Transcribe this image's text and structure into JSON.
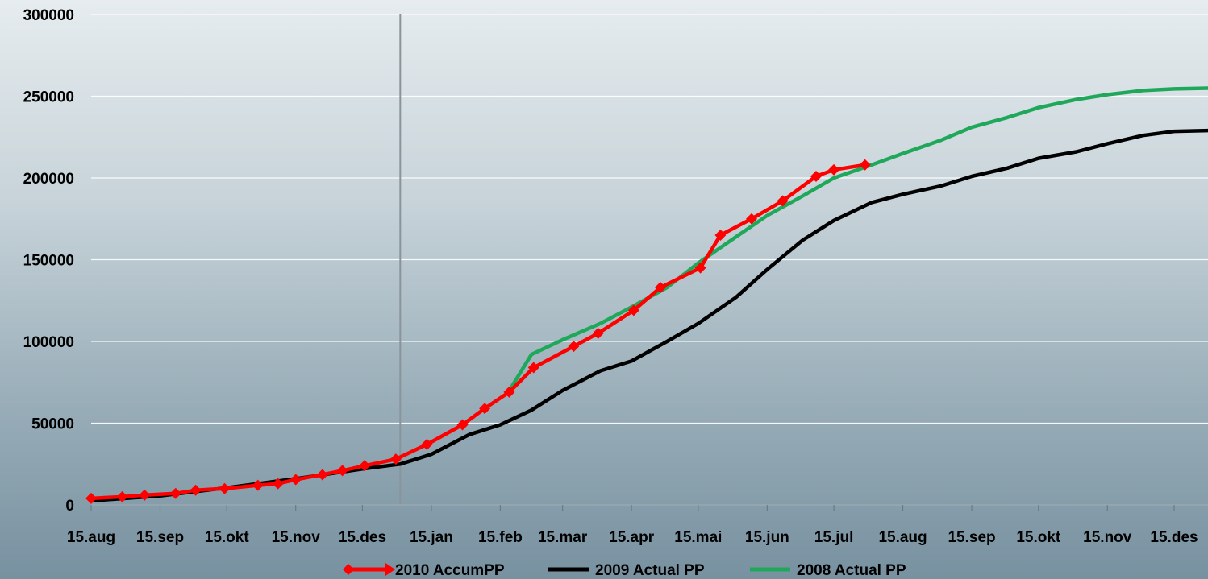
{
  "chart_data": {
    "type": "line",
    "title": "",
    "xlabel": "",
    "ylabel": "",
    "ylim": [
      0,
      300000
    ],
    "yticks": [
      0,
      50000,
      100000,
      150000,
      200000,
      250000,
      300000
    ],
    "ytick_labels": [
      "0",
      "50000",
      "100000",
      "150000",
      "200000",
      "250000",
      "300000"
    ],
    "x_axis": "date",
    "xlim": [
      "2009-08-15",
      "2010-12-15"
    ],
    "xtick_labels": [
      "15.aug",
      "15.sep",
      "15.okt",
      "15.nov",
      "15.des",
      "15.jan",
      "15.feb",
      "15.mar",
      "15.apr",
      "15.mai",
      "15.jun",
      "15.jul",
      "15.aug",
      "15.sep",
      "15.okt",
      "15.nov",
      "15.des"
    ],
    "xtick_dates": [
      "2009-08-15",
      "2009-09-15",
      "2009-10-15",
      "2009-11-15",
      "2009-12-15",
      "2010-01-15",
      "2010-02-15",
      "2010-03-15",
      "2010-04-15",
      "2010-05-15",
      "2010-06-15",
      "2010-07-15",
      "2010-08-15",
      "2010-09-15",
      "2010-10-15",
      "2010-11-15",
      "2010-12-15"
    ],
    "reference_line_date": "2010-01-01",
    "grid": "horizontal",
    "legend_position": "bottom",
    "series": [
      {
        "name": "2010 AccumPP",
        "color": "#ff0000",
        "marker": "diamond",
        "points": [
          [
            "2009-08-15",
            4000
          ],
          [
            "2009-08-29",
            5000
          ],
          [
            "2009-09-08",
            6000
          ],
          [
            "2009-09-22",
            7000
          ],
          [
            "2009-10-01",
            9000
          ],
          [
            "2009-10-14",
            10000
          ],
          [
            "2009-10-29",
            12000
          ],
          [
            "2009-11-07",
            13000
          ],
          [
            "2009-11-15",
            15500
          ],
          [
            "2009-11-27",
            18500
          ],
          [
            "2009-12-06",
            21000
          ],
          [
            "2009-12-16",
            24000
          ],
          [
            "2009-12-30",
            28000
          ],
          [
            "2010-01-13",
            37000
          ],
          [
            "2010-01-29",
            49000
          ],
          [
            "2010-02-08",
            59000
          ],
          [
            "2010-02-19",
            69000
          ],
          [
            "2010-03-02",
            84000
          ],
          [
            "2010-03-20",
            97000
          ],
          [
            "2010-03-31",
            105000
          ],
          [
            "2010-04-16",
            119000
          ],
          [
            "2010-04-28",
            133000
          ],
          [
            "2010-05-16",
            145000
          ],
          [
            "2010-05-25",
            165000
          ],
          [
            "2010-06-08",
            175000
          ],
          [
            "2010-06-22",
            186000
          ],
          [
            "2010-07-07",
            201000
          ],
          [
            "2010-07-15",
            205000
          ],
          [
            "2010-07-29",
            208000
          ]
        ]
      },
      {
        "name": "2009 Actual PP",
        "color": "#000000",
        "marker": "none",
        "points": [
          [
            "2009-08-15",
            2500
          ],
          [
            "2009-09-15",
            5500
          ],
          [
            "2009-10-15",
            10500
          ],
          [
            "2009-11-15",
            16000
          ],
          [
            "2009-12-15",
            22000
          ],
          [
            "2010-01-01",
            25000
          ],
          [
            "2010-01-15",
            31000
          ],
          [
            "2010-02-01",
            43000
          ],
          [
            "2010-02-15",
            49000
          ],
          [
            "2010-03-01",
            58000
          ],
          [
            "2010-03-15",
            70000
          ],
          [
            "2010-04-01",
            82000
          ],
          [
            "2010-04-15",
            88000
          ],
          [
            "2010-05-01",
            100000
          ],
          [
            "2010-05-15",
            111000
          ],
          [
            "2010-06-01",
            127000
          ],
          [
            "2010-06-15",
            144000
          ],
          [
            "2010-07-01",
            162000
          ],
          [
            "2010-07-15",
            174000
          ],
          [
            "2010-08-01",
            185000
          ],
          [
            "2010-08-15",
            190000
          ],
          [
            "2010-09-01",
            195000
          ],
          [
            "2010-09-15",
            201000
          ],
          [
            "2010-10-01",
            206000
          ],
          [
            "2010-10-15",
            212000
          ],
          [
            "2010-11-01",
            216000
          ],
          [
            "2010-11-15",
            221000
          ],
          [
            "2010-12-01",
            226000
          ],
          [
            "2010-12-15",
            228500
          ],
          [
            "2010-12-31",
            229000
          ]
        ]
      },
      {
        "name": "2008 Actual PP",
        "color": "#1fa85a",
        "marker": "none",
        "points": [
          [
            "2010-02-20",
            72000
          ],
          [
            "2010-03-01",
            92000
          ],
          [
            "2010-03-15",
            101000
          ],
          [
            "2010-04-01",
            111000
          ],
          [
            "2010-04-15",
            121000
          ],
          [
            "2010-05-01",
            133000
          ],
          [
            "2010-05-15",
            148000
          ],
          [
            "2010-06-01",
            164000
          ],
          [
            "2010-06-15",
            177000
          ],
          [
            "2010-07-01",
            189000
          ],
          [
            "2010-07-15",
            200000
          ],
          [
            "2010-08-01",
            208000
          ],
          [
            "2010-08-15",
            215000
          ],
          [
            "2010-09-01",
            223000
          ],
          [
            "2010-09-15",
            231000
          ],
          [
            "2010-10-01",
            237000
          ],
          [
            "2010-10-15",
            243000
          ],
          [
            "2010-11-01",
            248000
          ],
          [
            "2010-11-15",
            251000
          ],
          [
            "2010-12-01",
            253500
          ],
          [
            "2010-12-15",
            254500
          ],
          [
            "2010-12-31",
            255000
          ]
        ]
      }
    ]
  }
}
